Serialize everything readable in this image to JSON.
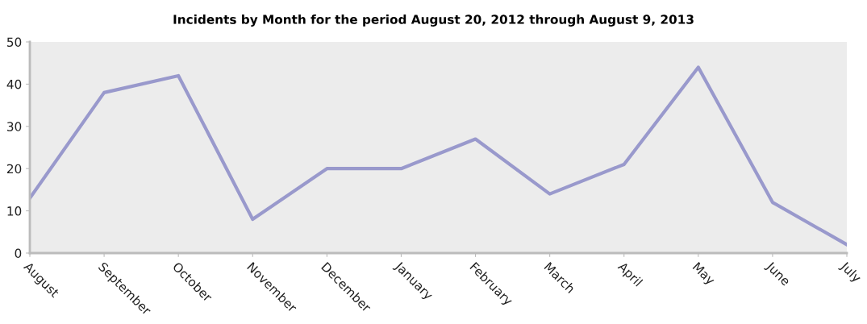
{
  "chart_data": {
    "type": "line",
    "title": "Incidents by Month for the period August 20, 2012 through August 9, 2013",
    "categories": [
      "August",
      "September",
      "October",
      "November",
      "December",
      "January",
      "February",
      "March",
      "April",
      "May",
      "June",
      "July"
    ],
    "series": [
      {
        "color": "#9999cc",
        "values": [
          13,
          38,
          42,
          8,
          20,
          20,
          27,
          14,
          21,
          44,
          12,
          2
        ]
      }
    ],
    "ylim": [
      0,
      50
    ],
    "yticks": [
      0,
      10,
      20,
      30,
      40,
      50
    ],
    "grid": false,
    "legend": false,
    "marker": "none",
    "line_style": "solid"
  }
}
